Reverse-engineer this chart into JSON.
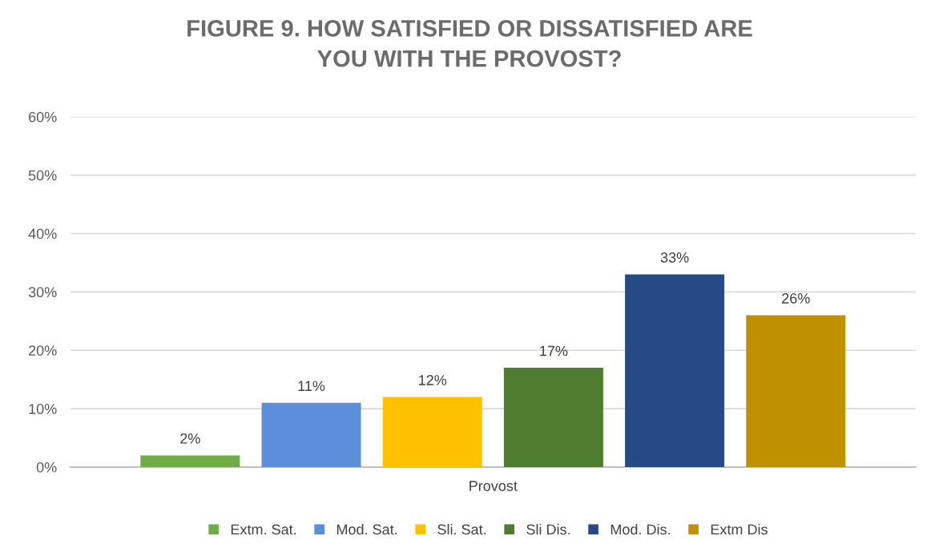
{
  "chart_data": {
    "type": "bar",
    "title": "FIGURE 9. HOW SATISFIED OR DISSATISFIED ARE\nYOU WITH THE PROVOST?",
    "categories": [
      "Provost"
    ],
    "series": [
      {
        "name": "Extm. Sat.",
        "color": "#70ad47",
        "values": [
          2
        ],
        "value_labels": [
          "2%"
        ]
      },
      {
        "name": "Mod. Sat.",
        "color": "#5b8fd9",
        "values": [
          11
        ],
        "value_labels": [
          "11%"
        ]
      },
      {
        "name": "Sli. Sat.",
        "color": "#ffc000",
        "values": [
          12
        ],
        "value_labels": [
          "12%"
        ]
      },
      {
        "name": "Sli Dis.",
        "color": "#4e7d30",
        "values": [
          17
        ],
        "value_labels": [
          "17%"
        ]
      },
      {
        "name": "Mod. Dis.",
        "color": "#264a85",
        "values": [
          33
        ],
        "value_labels": [
          "33%"
        ]
      },
      {
        "name": "Extm Dis",
        "color": "#bf9000",
        "values": [
          26
        ],
        "value_labels": [
          "26%"
        ]
      }
    ],
    "ylim": [
      0,
      60
    ],
    "yticks": [
      {
        "value": 0,
        "label": "0%"
      },
      {
        "value": 10,
        "label": "10%"
      },
      {
        "value": 20,
        "label": "20%"
      },
      {
        "value": 30,
        "label": "30%"
      },
      {
        "value": 40,
        "label": "40%"
      },
      {
        "value": 50,
        "label": "50%"
      },
      {
        "value": 60,
        "label": "60%"
      }
    ],
    "grid": "y",
    "legend": "bottom"
  }
}
